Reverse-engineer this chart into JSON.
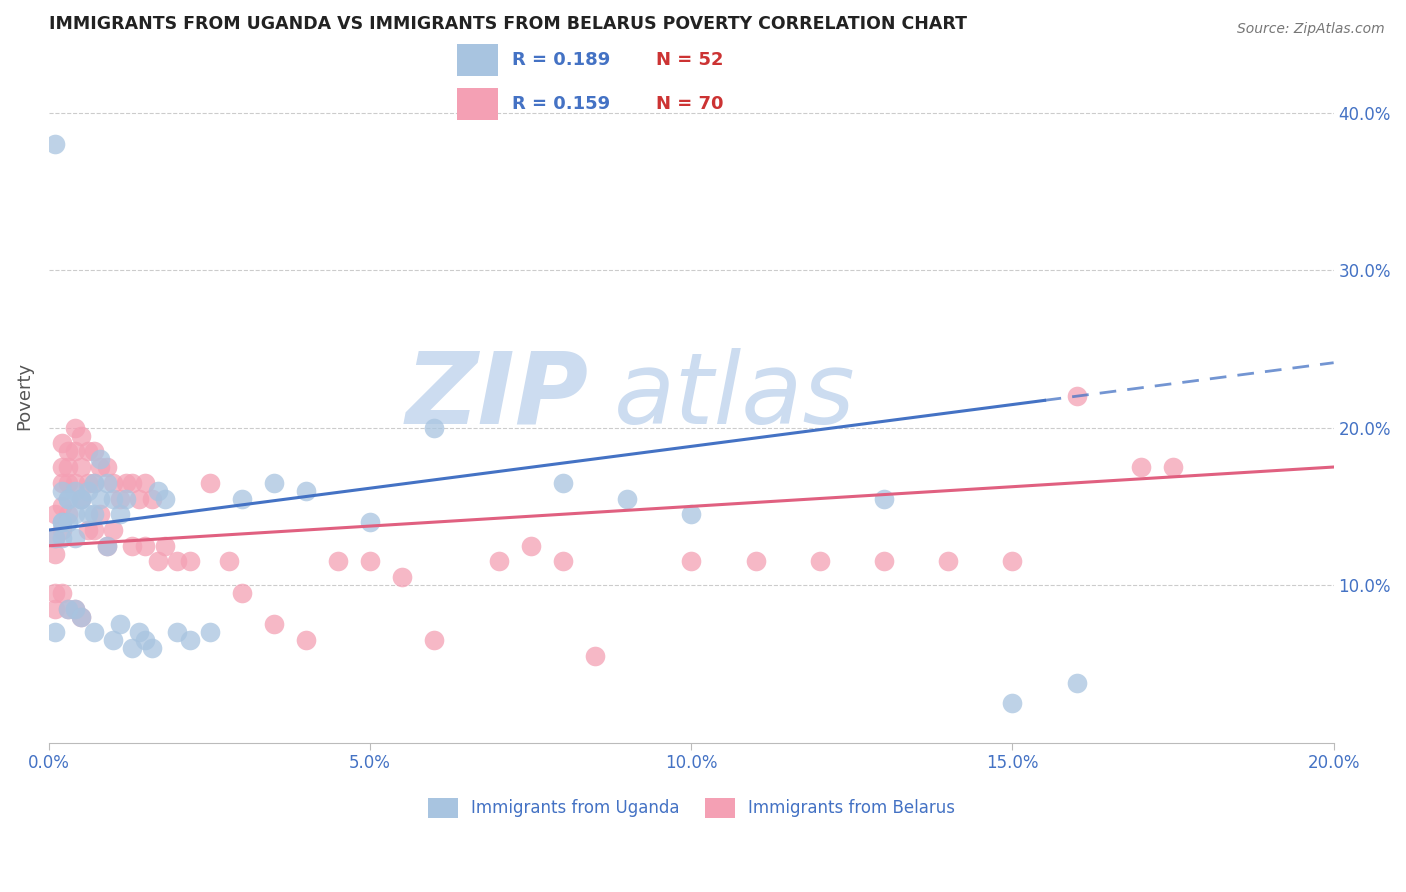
{
  "title": "IMMIGRANTS FROM UGANDA VS IMMIGRANTS FROM BELARUS POVERTY CORRELATION CHART",
  "source": "Source: ZipAtlas.com",
  "ylabel": "Poverty",
  "xlim": [
    0.0,
    0.2
  ],
  "ylim": [
    0.0,
    0.44
  ],
  "xticks": [
    0.0,
    0.05,
    0.1,
    0.15,
    0.2
  ],
  "xtick_labels": [
    "0.0%",
    "5.0%",
    "10.0%",
    "15.0%",
    "20.0%"
  ],
  "yticks": [
    0.1,
    0.2,
    0.3,
    0.4
  ],
  "ytick_labels": [
    "10.0%",
    "20.0%",
    "30.0%",
    "40.0%"
  ],
  "uganda_color": "#a8c4e0",
  "belarus_color": "#f4a0b4",
  "uganda_R": 0.189,
  "uganda_N": 52,
  "belarus_R": 0.159,
  "belarus_N": 70,
  "trend_line_color_uganda": "#4472c4",
  "trend_line_color_belarus": "#e06080",
  "watermark": "ZIPatlas",
  "watermark_color": "#ccdcf0",
  "background_color": "#ffffff",
  "title_color": "#222222",
  "tick_label_color": "#4472c4",
  "uganda_x": [
    0.001,
    0.001,
    0.001,
    0.002,
    0.002,
    0.002,
    0.002,
    0.003,
    0.003,
    0.003,
    0.003,
    0.004,
    0.004,
    0.004,
    0.004,
    0.005,
    0.005,
    0.005,
    0.006,
    0.006,
    0.007,
    0.007,
    0.007,
    0.008,
    0.008,
    0.009,
    0.009,
    0.01,
    0.01,
    0.011,
    0.011,
    0.012,
    0.013,
    0.014,
    0.015,
    0.016,
    0.017,
    0.018,
    0.02,
    0.022,
    0.025,
    0.03,
    0.035,
    0.04,
    0.05,
    0.06,
    0.08,
    0.09,
    0.1,
    0.13,
    0.15,
    0.16
  ],
  "uganda_y": [
    0.38,
    0.13,
    0.07,
    0.13,
    0.14,
    0.14,
    0.16,
    0.14,
    0.155,
    0.155,
    0.085,
    0.145,
    0.16,
    0.13,
    0.085,
    0.155,
    0.155,
    0.08,
    0.145,
    0.16,
    0.145,
    0.165,
    0.07,
    0.18,
    0.155,
    0.165,
    0.125,
    0.155,
    0.065,
    0.145,
    0.075,
    0.155,
    0.06,
    0.07,
    0.065,
    0.06,
    0.16,
    0.155,
    0.07,
    0.065,
    0.07,
    0.155,
    0.165,
    0.16,
    0.14,
    0.2,
    0.165,
    0.155,
    0.145,
    0.155,
    0.025,
    0.038
  ],
  "belarus_x": [
    0.001,
    0.001,
    0.001,
    0.001,
    0.001,
    0.002,
    0.002,
    0.002,
    0.002,
    0.002,
    0.002,
    0.003,
    0.003,
    0.003,
    0.003,
    0.003,
    0.004,
    0.004,
    0.004,
    0.004,
    0.005,
    0.005,
    0.005,
    0.005,
    0.006,
    0.006,
    0.006,
    0.007,
    0.007,
    0.007,
    0.008,
    0.008,
    0.009,
    0.009,
    0.01,
    0.01,
    0.011,
    0.012,
    0.013,
    0.013,
    0.014,
    0.015,
    0.015,
    0.016,
    0.017,
    0.018,
    0.02,
    0.022,
    0.025,
    0.028,
    0.03,
    0.035,
    0.04,
    0.045,
    0.05,
    0.06,
    0.07,
    0.08,
    0.1,
    0.12,
    0.13,
    0.14,
    0.15,
    0.16,
    0.17,
    0.175,
    0.085,
    0.11,
    0.055,
    0.075
  ],
  "belarus_y": [
    0.145,
    0.13,
    0.12,
    0.095,
    0.085,
    0.19,
    0.175,
    0.165,
    0.15,
    0.135,
    0.095,
    0.185,
    0.175,
    0.165,
    0.145,
    0.085,
    0.2,
    0.185,
    0.165,
    0.085,
    0.195,
    0.175,
    0.155,
    0.08,
    0.185,
    0.165,
    0.135,
    0.185,
    0.165,
    0.135,
    0.175,
    0.145,
    0.175,
    0.125,
    0.165,
    0.135,
    0.155,
    0.165,
    0.165,
    0.125,
    0.155,
    0.165,
    0.125,
    0.155,
    0.115,
    0.125,
    0.115,
    0.115,
    0.165,
    0.115,
    0.095,
    0.075,
    0.065,
    0.115,
    0.115,
    0.065,
    0.115,
    0.115,
    0.115,
    0.115,
    0.115,
    0.115,
    0.115,
    0.22,
    0.175,
    0.175,
    0.055,
    0.115,
    0.105,
    0.125
  ]
}
